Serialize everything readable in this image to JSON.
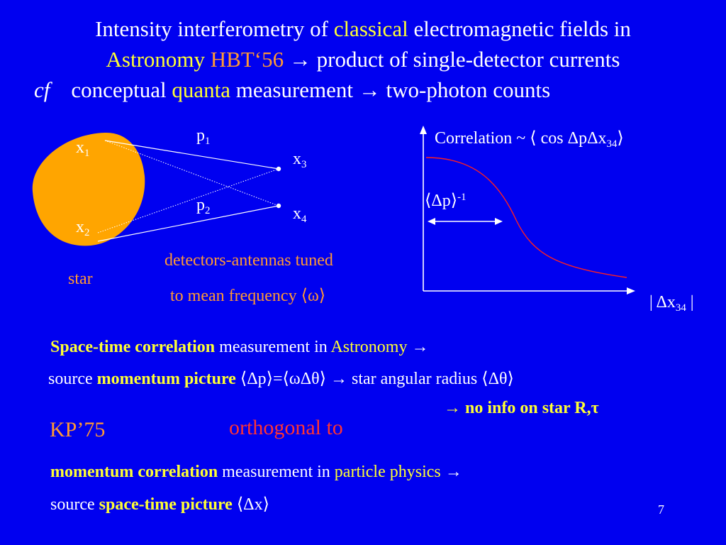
{
  "title": {
    "line1": {
      "a": "Intensity interferometry of ",
      "b": "classical",
      "c": " electromagnetic fields in"
    },
    "line2": {
      "a": "Astronomy ",
      "b": "HBT‘56",
      "c": " → product of single-detector currents"
    },
    "line3": {
      "a": "cf",
      "b": "conceptual ",
      "c": "quanta",
      "d": " measurement → two-photon counts"
    }
  },
  "diagram": {
    "x1": {
      "base": "x",
      "sub": "1"
    },
    "x2": {
      "base": "x",
      "sub": "2"
    },
    "x3": {
      "base": "x",
      "sub": "3"
    },
    "x4": {
      "base": "x",
      "sub": "4"
    },
    "p1": {
      "base": "p",
      "sub": "1"
    },
    "p2": {
      "base": "p",
      "sub": "2"
    },
    "star_label": "star",
    "detectors_line1": "detectors-antennas tuned",
    "detectors_line2": "to mean frequency ⟨ω⟩"
  },
  "correlation_plot": {
    "ylabel_pre": "Correlation ~ ⟨ cos Δ",
    "ylabel_mid": "pΔx",
    "ylabel_sub": "34",
    "ylabel_post": "⟩",
    "width_base": "⟨Δp⟩",
    "width_sup": "-1",
    "xlabel_pre": "| Δx",
    "xlabel_sub": "34",
    "xlabel_post": " |"
  },
  "section1": {
    "l1a": "Space-time correlation",
    "l1b": " measurement  in ",
    "l1c": "Astronomy",
    "l1d": " →",
    "l2a": "source ",
    "l2b": "momentum picture",
    "l2c": " ⟨Δp⟩=⟨ωΔθ⟩ → star angular radius ⟨Δθ⟩",
    "l3": "→ no info on star R,τ"
  },
  "kp": "KP’75",
  "orthogonal": "orthogonal to",
  "section2": {
    "l1a": "momentum correlation",
    "l1b": " measurement in ",
    "l1c": "particle physics",
    "l1d": " →",
    "l2a": "source ",
    "l2b": "space-time picture",
    "l2c": " ⟨Δx⟩"
  },
  "page_number": "7",
  "colors": {
    "background": "#0000f0",
    "star_fill": "#ffa500",
    "highlight": "#ffff33",
    "accent": "#ff9933",
    "curve": "#ff2020"
  }
}
